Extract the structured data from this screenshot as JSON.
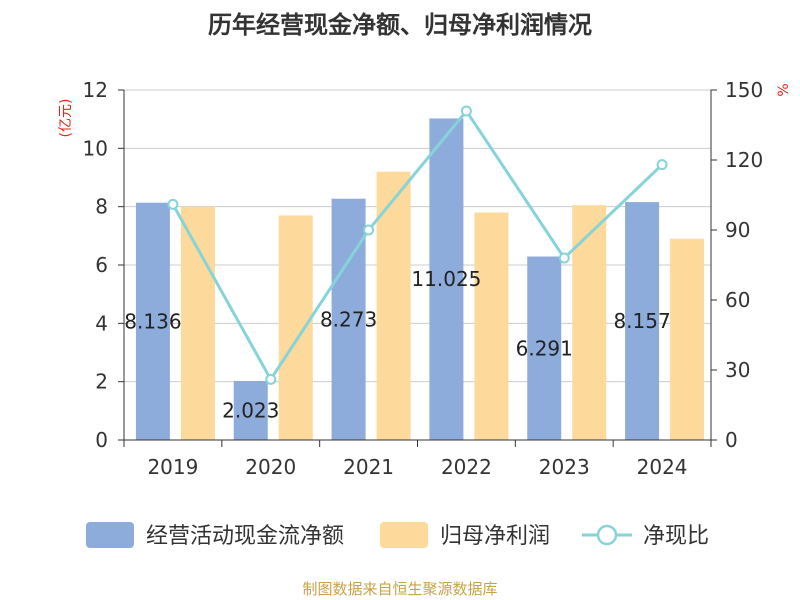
{
  "chart_data": {
    "type": "bar",
    "title": "历年经营现金净额、归母净利润情况",
    "categories": [
      "2019",
      "2020",
      "2021",
      "2022",
      "2023",
      "2024"
    ],
    "y_left_unit": "(亿元)",
    "y_right_unit": "%",
    "y_left_range": [
      0,
      12
    ],
    "y_left_ticks": [
      "0",
      "2",
      "4",
      "6",
      "8",
      "10",
      "12"
    ],
    "y_right_range": [
      0,
      150
    ],
    "y_right_ticks": [
      "0",
      "30",
      "60",
      "90",
      "120",
      "150"
    ],
    "grid": true,
    "series": [
      {
        "name": "经营活动现金流净额",
        "type": "bar",
        "axis": "left",
        "color": "#8eacdb",
        "values": [
          8.136,
          2.023,
          8.273,
          11.025,
          6.291,
          8.157
        ],
        "labels": [
          "8.136",
          "2.023",
          "8.273",
          "11.025",
          "6.291",
          "8.157"
        ]
      },
      {
        "name": "归母净利润",
        "type": "bar",
        "axis": "left",
        "color": "#fdd99b",
        "values": [
          8.0,
          7.7,
          9.2,
          7.8,
          8.05,
          6.9
        ]
      },
      {
        "name": "净现比",
        "type": "line",
        "axis": "right",
        "color": "#86d4d8",
        "values": [
          101,
          26,
          90,
          141,
          78,
          118
        ]
      }
    ],
    "legend_position": "bottom",
    "source": "制图数据来自恒生聚源数据库"
  }
}
